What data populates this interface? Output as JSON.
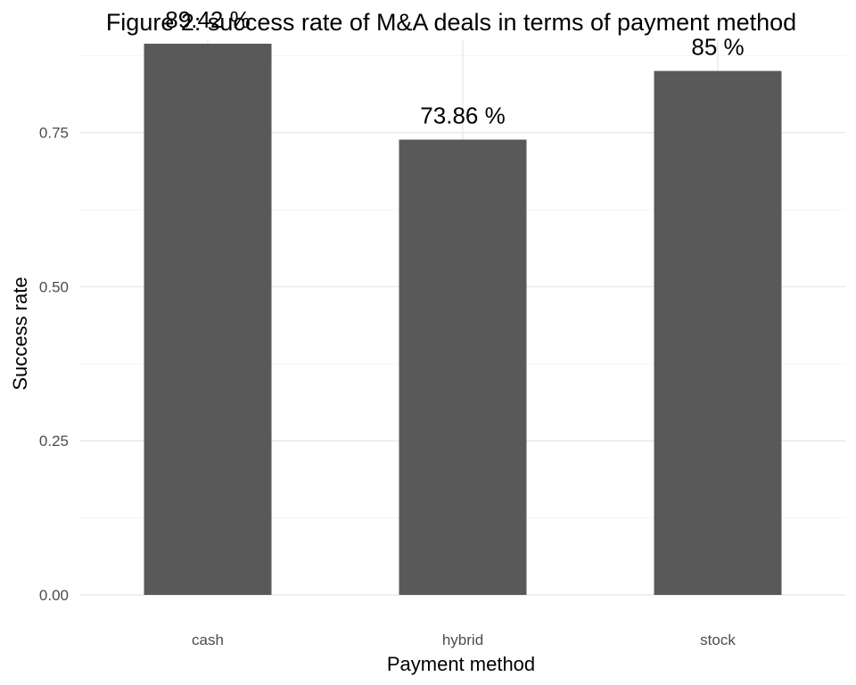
{
  "chart_data": {
    "type": "bar",
    "title": "Figure 2: success rate of M&A deals in terms of payment method",
    "xlabel": "Payment method",
    "ylabel": "Success rate",
    "categories": [
      "cash",
      "hybrid",
      "stock"
    ],
    "values": [
      0.8942,
      0.7386,
      0.85
    ],
    "data_labels": [
      "89.42 %",
      "73.86 %",
      "85 %"
    ],
    "ylim": [
      0,
      0.9
    ],
    "y_ticks": [
      0,
      0.25,
      0.5,
      0.75
    ],
    "y_tick_labels": [
      "0.00",
      "0.25",
      "0.50",
      "0.75"
    ],
    "grid": true,
    "legend": "none",
    "colors": {
      "bar": "#595959"
    }
  }
}
